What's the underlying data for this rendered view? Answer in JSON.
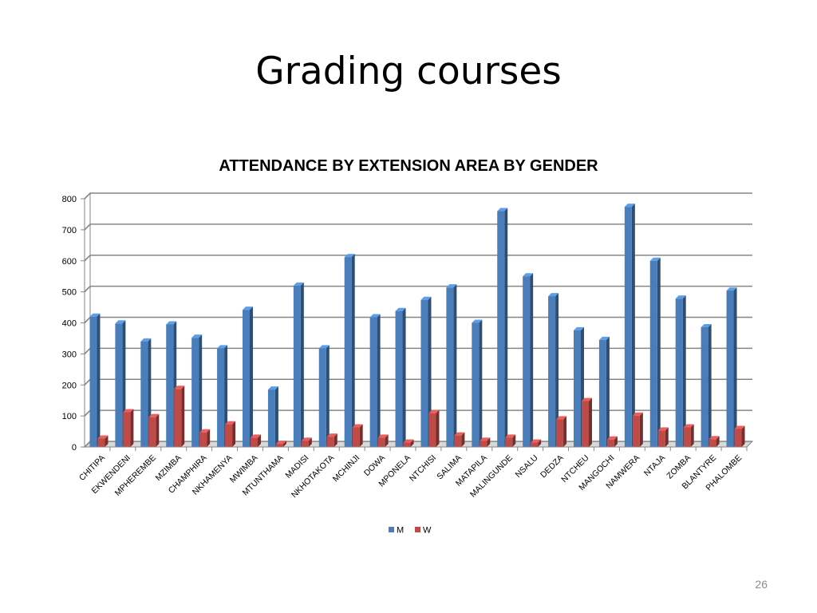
{
  "slide": {
    "title": "Grading courses",
    "page_number": "26"
  },
  "colors": {
    "M": "#4a7ebb",
    "W": "#be4b48",
    "grid": "#868686",
    "floor": "#d9d9d9"
  },
  "chart_data": {
    "type": "bar",
    "title": "ATTENDANCE BY EXTENSION AREA BY GENDER",
    "xlabel": "",
    "ylabel": "",
    "ylim": [
      0,
      800
    ],
    "yticks": [
      0,
      100,
      200,
      300,
      400,
      500,
      600,
      700,
      800
    ],
    "grid": true,
    "style": "3d-clustered-column",
    "legend_position": "bottom",
    "categories": [
      "CHITIPA",
      "EKWENDENI",
      "MPHEREMBE",
      "MZIMBA",
      "CHAMPHIRA",
      "NKHAMENYA",
      "MWIMBA",
      "MTUNTHAMA",
      "MADISI",
      "NKHOTAKOTA",
      "MCHINJI",
      "DOWA",
      "MPONELA",
      "NTCHISI",
      "SALIMA",
      "MATAPILA",
      "MALINGUNDE",
      "NSALU",
      "DEDZA",
      "NTCHEU",
      "MANGOCHI",
      "NAMWERA",
      "NTAJA",
      "ZOMBA",
      "BLANTYRE",
      "PHALOMBE"
    ],
    "series": [
      {
        "name": "M",
        "values": [
          420,
          398,
          340,
          395,
          352,
          318,
          442,
          185,
          520,
          318,
          612,
          418,
          438,
          474,
          514,
          400,
          760,
          550,
          486,
          376,
          345,
          774,
          600,
          478,
          386,
          504
        ]
      },
      {
        "name": "W",
        "values": [
          27,
          112,
          96,
          187,
          47,
          73,
          30,
          10,
          20,
          33,
          63,
          30,
          14,
          109,
          37,
          20,
          30,
          14,
          89,
          148,
          24,
          101,
          53,
          63,
          25,
          58
        ]
      }
    ]
  }
}
